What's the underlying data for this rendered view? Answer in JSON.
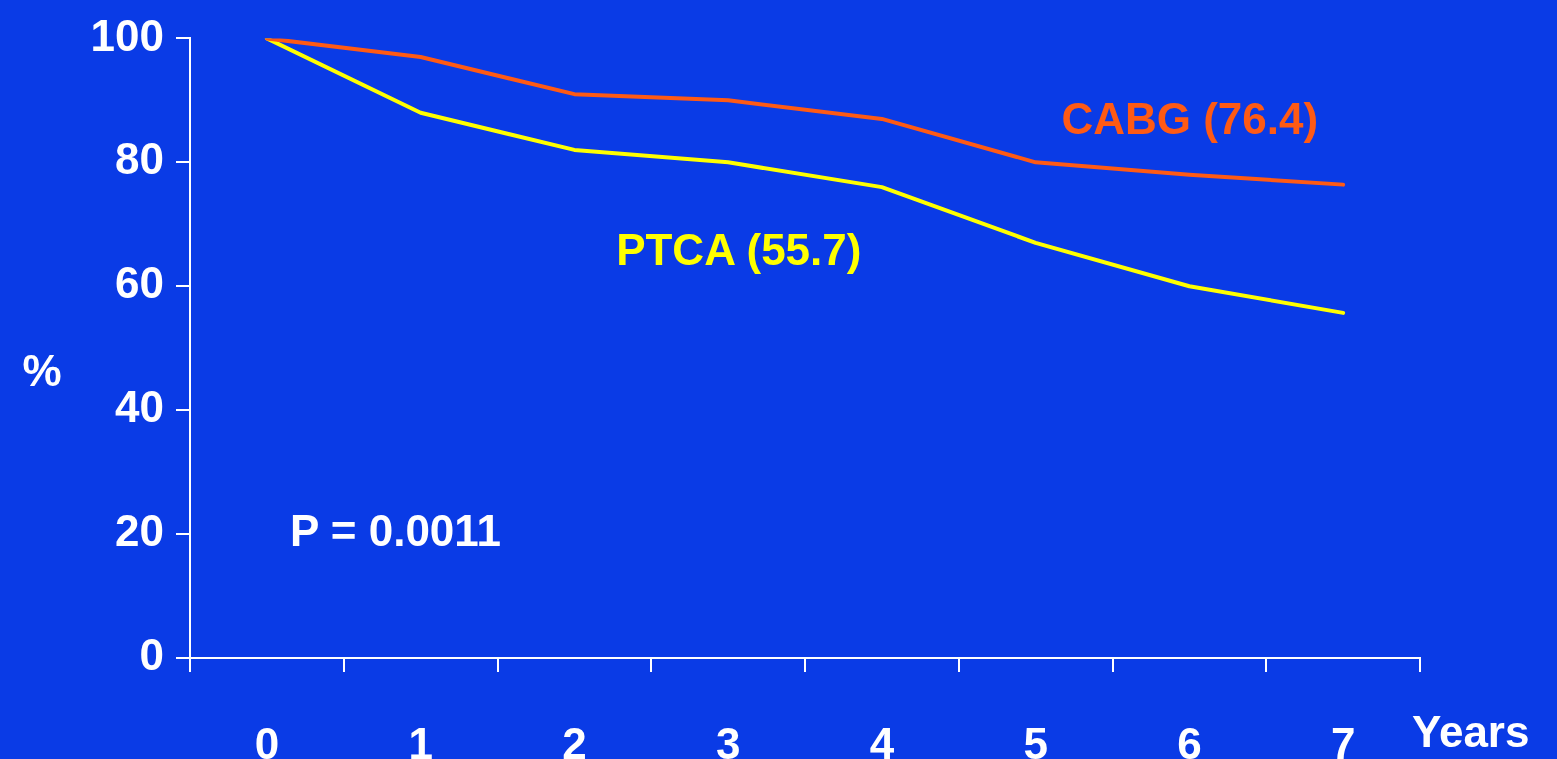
{
  "chart_data": {
    "type": "line",
    "xlabel": "Years",
    "ylabel": "%",
    "categories": [
      "0",
      "1",
      "2",
      "3",
      "4",
      "5",
      "6",
      "7"
    ],
    "series": [
      {
        "name": "CABG (76.4)",
        "color": "#ff5a14",
        "values": [
          100,
          97,
          91,
          90,
          87,
          80,
          78,
          76.4
        ]
      },
      {
        "name": "PTCA (55.7)",
        "color": "#ffff00",
        "values": [
          100,
          88,
          82,
          80,
          76,
          67,
          60,
          55.7
        ]
      }
    ],
    "ylim": [
      0,
      100
    ],
    "yticks": [
      0,
      20,
      40,
      60,
      80,
      100
    ],
    "grid": false,
    "legend": false,
    "marker": "none",
    "line_style": "solid",
    "annotations": [
      "P = 0.0011"
    ]
  }
}
